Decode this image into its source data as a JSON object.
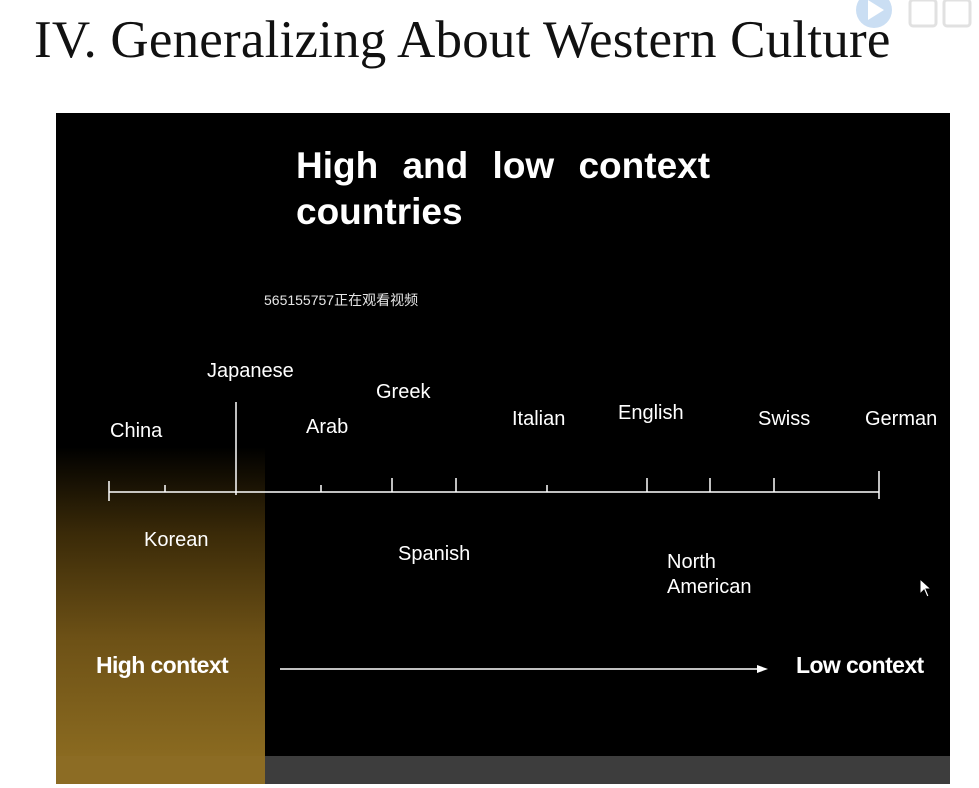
{
  "page_title": "IV. Generalizing About Western Culture",
  "slide": {
    "heading": "High and low context countries",
    "watermark_text": "565155757正在观看视频",
    "countries_above": [
      "China",
      "Japanese",
      "Arab",
      "Greek",
      "Italian",
      "English",
      "Swiss",
      "German"
    ],
    "countries_below": [
      "Korean",
      "Spanish",
      "North American"
    ],
    "left_end_label": "High context",
    "right_end_label": "Low context"
  },
  "colors": {
    "slide_background": "#000000",
    "text": "#ffffff",
    "high_context_accent": "#8a6a20",
    "bottom_bar": "#3d3d3d"
  },
  "icons": [
    "video-platform-logo",
    "mouse-pointer-icon"
  ]
}
